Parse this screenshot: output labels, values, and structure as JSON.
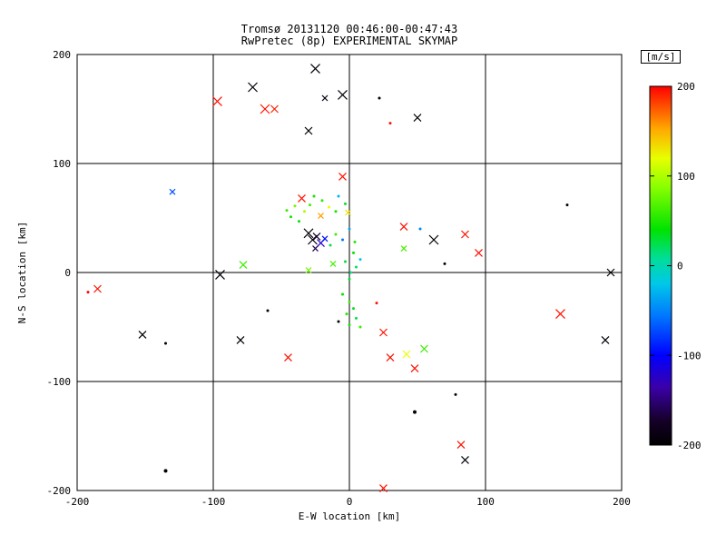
{
  "title": {
    "line1": "Tromsø 20131120 00:46:00-00:47:43",
    "line2": "RwPretec (8p) EXPERIMENTAL SKYMAP"
  },
  "chart_data": {
    "type": "scatter",
    "title": "Tromsø 20131120 00:46:00-00:47:43 / RwPretec (8p) EXPERIMENTAL SKYMAP",
    "xlabel": "E-W location [km]",
    "ylabel": "N-S location [km]",
    "xlim": [
      -200,
      200
    ],
    "ylim": [
      -200,
      200
    ],
    "xticks": [
      -200,
      -100,
      0,
      100,
      200
    ],
    "yticks": [
      -200,
      -100,
      0,
      100,
      200
    ],
    "grid": true,
    "colorbar": {
      "label": "[m/s]",
      "ticks": [
        200,
        100,
        0,
        -100,
        -200
      ],
      "range": [
        -200,
        200
      ],
      "stops": [
        {
          "t": 0.0,
          "c": "#000000"
        },
        {
          "t": 0.07,
          "c": "#16002a"
        },
        {
          "t": 0.16,
          "c": "#3b00a8"
        },
        {
          "t": 0.25,
          "c": "#0000ff"
        },
        {
          "t": 0.36,
          "c": "#0077ff"
        },
        {
          "t": 0.45,
          "c": "#00c8e8"
        },
        {
          "t": 0.52,
          "c": "#00dd99"
        },
        {
          "t": 0.6,
          "c": "#00e200"
        },
        {
          "t": 0.72,
          "c": "#8aff00"
        },
        {
          "t": 0.8,
          "c": "#e8ff00"
        },
        {
          "t": 0.88,
          "c": "#ffaa00"
        },
        {
          "t": 1.0,
          "c": "#ff0000"
        }
      ]
    },
    "points": [
      {
        "x": -97,
        "y": 157,
        "v": 195,
        "m": "x",
        "s": 5
      },
      {
        "x": -71,
        "y": 170,
        "v": -195,
        "m": "x",
        "s": 5
      },
      {
        "x": -62,
        "y": 150,
        "v": 195,
        "m": "x",
        "s": 5
      },
      {
        "x": -55,
        "y": 150,
        "v": 190,
        "m": "x",
        "s": 4
      },
      {
        "x": -25,
        "y": 187,
        "v": -195,
        "m": "x",
        "s": 5
      },
      {
        "x": -30,
        "y": 130,
        "v": -195,
        "m": "x",
        "s": 4
      },
      {
        "x": -5,
        "y": 163,
        "v": -195,
        "m": "x",
        "s": 5
      },
      {
        "x": -18,
        "y": 160,
        "v": -190,
        "m": "x",
        "s": 3
      },
      {
        "x": 22,
        "y": 160,
        "v": -195,
        "m": "d",
        "s": 3
      },
      {
        "x": 30,
        "y": 137,
        "v": 195,
        "m": "d",
        "s": 3
      },
      {
        "x": 50,
        "y": 142,
        "v": -195,
        "m": "x",
        "s": 4
      },
      {
        "x": -130,
        "y": 74,
        "v": -70,
        "m": "x",
        "s": 3
      },
      {
        "x": -185,
        "y": -15,
        "v": 195,
        "m": "x",
        "s": 4
      },
      {
        "x": -192,
        "y": -18,
        "v": 200,
        "m": "d",
        "s": 3
      },
      {
        "x": -95,
        "y": -2,
        "v": -195,
        "m": "x",
        "s": 5
      },
      {
        "x": -78,
        "y": 7,
        "v": 60,
        "m": "x",
        "s": 4
      },
      {
        "x": -152,
        "y": -57,
        "v": -195,
        "m": "x",
        "s": 4
      },
      {
        "x": -135,
        "y": -65,
        "v": -195,
        "m": "d",
        "s": 3
      },
      {
        "x": -80,
        "y": -62,
        "v": -195,
        "m": "x",
        "s": 4
      },
      {
        "x": -60,
        "y": -35,
        "v": -195,
        "m": "d",
        "s": 3
      },
      {
        "x": -135,
        "y": -182,
        "v": -195,
        "m": "d",
        "s": 4
      },
      {
        "x": -35,
        "y": 68,
        "v": 195,
        "m": "x",
        "s": 4
      },
      {
        "x": -46,
        "y": 57,
        "v": 60,
        "m": "d",
        "s": 3
      },
      {
        "x": -43,
        "y": 51,
        "v": 45,
        "m": "d",
        "s": 3
      },
      {
        "x": -40,
        "y": 61,
        "v": 80,
        "m": "d",
        "s": 3
      },
      {
        "x": -37,
        "y": 47,
        "v": 35,
        "m": "d",
        "s": 3
      },
      {
        "x": -33,
        "y": 56,
        "v": 100,
        "m": "d",
        "s": 3
      },
      {
        "x": -29,
        "y": 62,
        "v": 60,
        "m": "d",
        "s": 3
      },
      {
        "x": -26,
        "y": 70,
        "v": 45,
        "m": "d",
        "s": 3
      },
      {
        "x": -20,
        "y": 66,
        "v": 55,
        "m": "d",
        "s": 3
      },
      {
        "x": -15,
        "y": 60,
        "v": 120,
        "m": "d",
        "s": 3
      },
      {
        "x": -21,
        "y": 52,
        "v": 155,
        "m": "x",
        "s": 3
      },
      {
        "x": -10,
        "y": 56,
        "v": 45,
        "m": "d",
        "s": 3
      },
      {
        "x": -8,
        "y": 70,
        "v": -30,
        "m": "d",
        "s": 3
      },
      {
        "x": -3,
        "y": 63,
        "v": 35,
        "m": "d",
        "s": 3
      },
      {
        "x": -1,
        "y": 55,
        "v": 130,
        "m": "x",
        "s": 3
      },
      {
        "x": -5,
        "y": 88,
        "v": 195,
        "m": "x",
        "s": 4
      },
      {
        "x": -30,
        "y": 36,
        "v": -195,
        "m": "x",
        "s": 5
      },
      {
        "x": -27,
        "y": 30,
        "v": -195,
        "m": "x",
        "s": 5
      },
      {
        "x": -24,
        "y": 33,
        "v": -175,
        "m": "x",
        "s": 4
      },
      {
        "x": -21,
        "y": 27,
        "v": -120,
        "m": "x",
        "s": 4
      },
      {
        "x": -18,
        "y": 31,
        "v": -95,
        "m": "x",
        "s": 3
      },
      {
        "x": -25,
        "y": 22,
        "v": -160,
        "m": "x",
        "s": 3
      },
      {
        "x": -14,
        "y": 25,
        "v": 25,
        "m": "d",
        "s": 3
      },
      {
        "x": -10,
        "y": 35,
        "v": 60,
        "m": "d",
        "s": 3
      },
      {
        "x": -5,
        "y": 30,
        "v": -55,
        "m": "d",
        "s": 3
      },
      {
        "x": 0,
        "y": 40,
        "v": -35,
        "m": "d",
        "s": 3
      },
      {
        "x": 4,
        "y": 28,
        "v": 50,
        "m": "d",
        "s": 3
      },
      {
        "x": 3,
        "y": 18,
        "v": 40,
        "m": "d",
        "s": 3
      },
      {
        "x": -3,
        "y": 10,
        "v": 30,
        "m": "d",
        "s": 3
      },
      {
        "x": -12,
        "y": 8,
        "v": 65,
        "m": "x",
        "s": 3
      },
      {
        "x": 5,
        "y": 5,
        "v": 20,
        "m": "d",
        "s": 3
      },
      {
        "x": 8,
        "y": 12,
        "v": -20,
        "m": "d",
        "s": 3
      },
      {
        "x": 1,
        "y": 0,
        "v": 15,
        "m": "d",
        "s": 3
      },
      {
        "x": 0,
        "y": -6,
        "v": 30,
        "m": "d",
        "s": 3
      },
      {
        "x": -30,
        "y": 2,
        "v": 80,
        "m": "x",
        "s": 3
      },
      {
        "x": 40,
        "y": 42,
        "v": 195,
        "m": "x",
        "s": 4
      },
      {
        "x": 52,
        "y": 40,
        "v": -50,
        "m": "d",
        "s": 3
      },
      {
        "x": 62,
        "y": 30,
        "v": -195,
        "m": "x",
        "s": 5
      },
      {
        "x": 85,
        "y": 35,
        "v": 195,
        "m": "x",
        "s": 4
      },
      {
        "x": 40,
        "y": 22,
        "v": 65,
        "m": "x",
        "s": 3
      },
      {
        "x": 70,
        "y": 8,
        "v": -195,
        "m": "d",
        "s": 3
      },
      {
        "x": 95,
        "y": 18,
        "v": 195,
        "m": "x",
        "s": 4
      },
      {
        "x": 192,
        "y": 0,
        "v": -195,
        "m": "x",
        "s": 4
      },
      {
        "x": 160,
        "y": 62,
        "v": -195,
        "m": "d",
        "s": 3
      },
      {
        "x": 155,
        "y": -38,
        "v": 195,
        "m": "x",
        "s": 5
      },
      {
        "x": 188,
        "y": -62,
        "v": -195,
        "m": "x",
        "s": 4
      },
      {
        "x": -5,
        "y": -20,
        "v": 40,
        "m": "d",
        "s": 3
      },
      {
        "x": 0,
        "y": -27,
        "v": 60,
        "m": "d",
        "s": 3
      },
      {
        "x": 3,
        "y": -33,
        "v": 30,
        "m": "d",
        "s": 3
      },
      {
        "x": -2,
        "y": -38,
        "v": 50,
        "m": "d",
        "s": 3
      },
      {
        "x": 5,
        "y": -42,
        "v": 25,
        "m": "d",
        "s": 3
      },
      {
        "x": 0,
        "y": -48,
        "v": 45,
        "m": "d",
        "s": 3
      },
      {
        "x": 8,
        "y": -50,
        "v": 60,
        "m": "d",
        "s": 3
      },
      {
        "x": -8,
        "y": -45,
        "v": -195,
        "m": "d",
        "s": 3
      },
      {
        "x": 20,
        "y": -28,
        "v": 195,
        "m": "d",
        "s": 3
      },
      {
        "x": 25,
        "y": -55,
        "v": 195,
        "m": "x",
        "s": 4
      },
      {
        "x": -45,
        "y": -78,
        "v": 195,
        "m": "x",
        "s": 4
      },
      {
        "x": 30,
        "y": -78,
        "v": 195,
        "m": "x",
        "s": 4
      },
      {
        "x": 42,
        "y": -75,
        "v": 120,
        "m": "x",
        "s": 4
      },
      {
        "x": 55,
        "y": -70,
        "v": 60,
        "m": "x",
        "s": 4
      },
      {
        "x": 48,
        "y": -88,
        "v": 195,
        "m": "x",
        "s": 4
      },
      {
        "x": 48,
        "y": -128,
        "v": -195,
        "m": "d",
        "s": 4
      },
      {
        "x": 78,
        "y": -112,
        "v": -195,
        "m": "d",
        "s": 3
      },
      {
        "x": 82,
        "y": -158,
        "v": 195,
        "m": "x",
        "s": 4
      },
      {
        "x": 85,
        "y": -172,
        "v": -195,
        "m": "x",
        "s": 4
      },
      {
        "x": 25,
        "y": -198,
        "v": 195,
        "m": "x",
        "s": 4
      }
    ]
  }
}
